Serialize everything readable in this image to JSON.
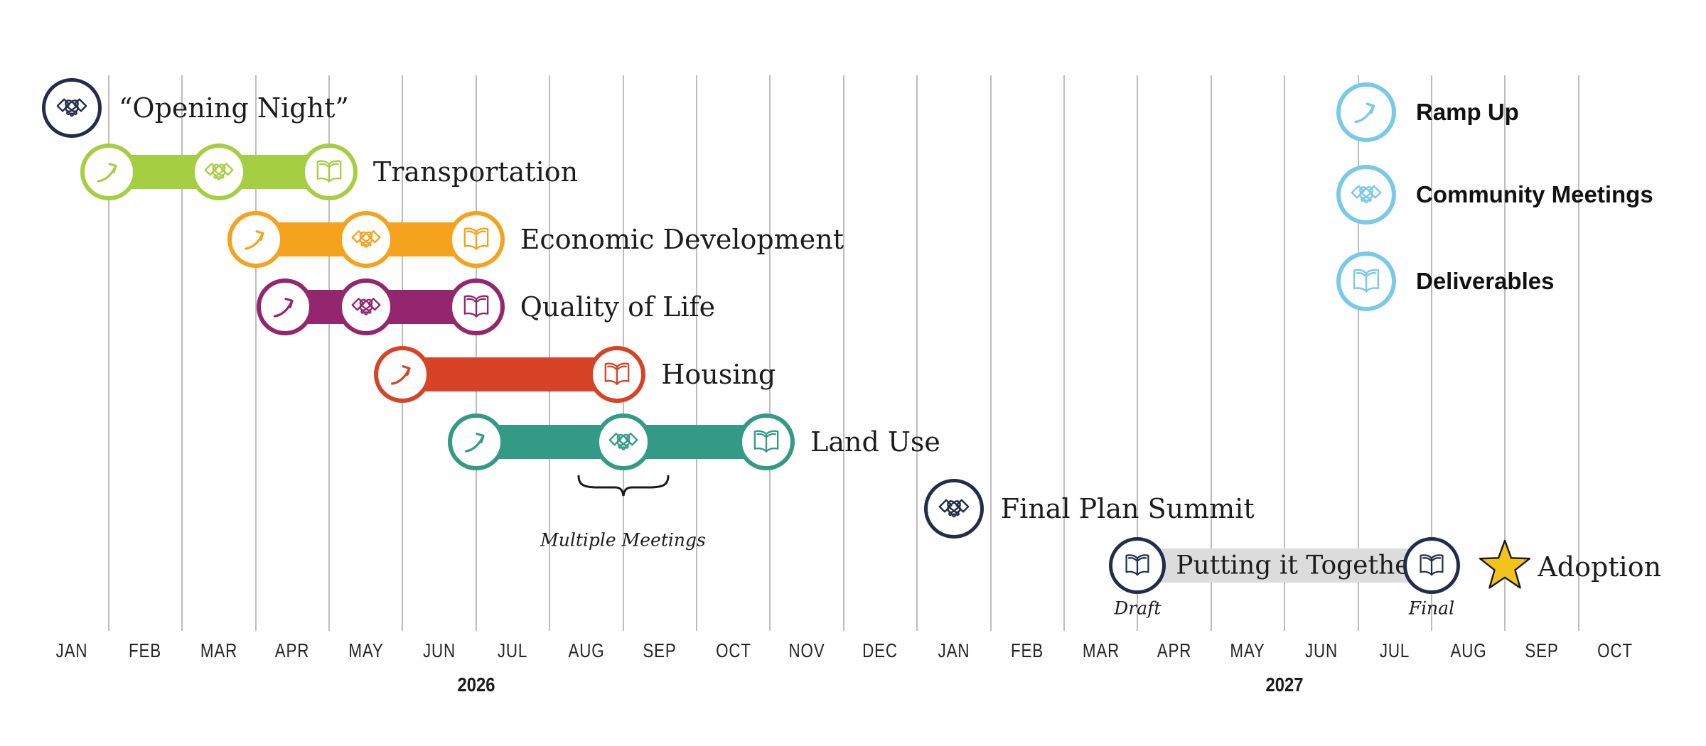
{
  "colors": {
    "green": "#a6ce43",
    "orange": "#f5a21d",
    "purple": "#93266e",
    "red": "#d64327",
    "teal": "#339a86",
    "navy": "#232d4a",
    "legend_blue": "#79c9e9",
    "assembly_gray": "#dcdcdc",
    "star_gold": "#f2c318",
    "gridline": "#bdbdbd",
    "text": "#1c1c1c"
  },
  "chart_data": {
    "type": "timeline",
    "time_unit": "months, u = month index from JAN 2026 (0) to OCT 2027 (21); x.5 = month boundary",
    "x_axis": {
      "months": [
        "JAN",
        "FEB",
        "MAR",
        "APR",
        "MAY",
        "JUN",
        "JUL",
        "AUG",
        "SEP",
        "OCT",
        "NOV",
        "DEC",
        "JAN",
        "FEB",
        "MAR",
        "APR",
        "MAY",
        "JUN",
        "JUL",
        "AUG",
        "SEP",
        "OCT"
      ],
      "years": [
        {
          "label": "2026",
          "u": 5.5
        },
        {
          "label": "2027",
          "u": 16.5
        }
      ]
    },
    "milestones": [
      {
        "id": "opening-night",
        "label": "“Opening Night”",
        "icon": "handshake-icon",
        "u": 0,
        "color_key": "navy"
      },
      {
        "id": "final-plan-summit",
        "label": "Final Plan Summit",
        "icon": "handshake-icon",
        "u": 12,
        "color_key": "navy"
      },
      {
        "id": "adoption",
        "label": "Adoption",
        "icon": "star-icon",
        "u": 19.5,
        "color_key": "star_gold"
      }
    ],
    "phases": [
      {
        "label": "Transportation",
        "color_key": "green",
        "events": [
          {
            "type": "ramp-up",
            "u": 0.5
          },
          {
            "type": "community-meeting",
            "u": 2.0
          },
          {
            "type": "deliverable",
            "u": 3.5
          }
        ]
      },
      {
        "label": "Economic Development",
        "color_key": "orange",
        "events": [
          {
            "type": "ramp-up",
            "u": 2.5
          },
          {
            "type": "community-meeting",
            "u": 4.0
          },
          {
            "type": "deliverable",
            "u": 5.5
          }
        ]
      },
      {
        "label": "Quality of Life",
        "color_key": "purple",
        "events": [
          {
            "type": "ramp-up",
            "u": 2.9
          },
          {
            "type": "community-meeting",
            "u": 4.0
          },
          {
            "type": "deliverable",
            "u": 5.5
          }
        ]
      },
      {
        "label": "Housing",
        "color_key": "red",
        "events": [
          {
            "type": "ramp-up",
            "u": 4.5
          },
          {
            "type": "deliverable",
            "u": 7.42
          }
        ]
      },
      {
        "label": "Land Use",
        "color_key": "teal",
        "events": [
          {
            "type": "ramp-up",
            "u": 5.5
          },
          {
            "type": "community-meeting",
            "u": 7.5,
            "annotation": "Multiple Meetings"
          },
          {
            "type": "deliverable",
            "u": 9.45
          }
        ]
      }
    ],
    "assembly": {
      "label": "Putting it Together",
      "color_key": "assembly_gray",
      "start_u": 14.5,
      "end_u": 18.5,
      "start_icon": "book-icon",
      "end_icon": "book-icon",
      "start_note": "Draft",
      "end_note": "Final"
    }
  },
  "legend": {
    "items": [
      {
        "icon": "ramp-up-icon",
        "label": "Ramp Up"
      },
      {
        "icon": "handshake-icon",
        "label": "Community Meetings"
      },
      {
        "icon": "book-icon",
        "label": "Deliverables"
      }
    ]
  }
}
